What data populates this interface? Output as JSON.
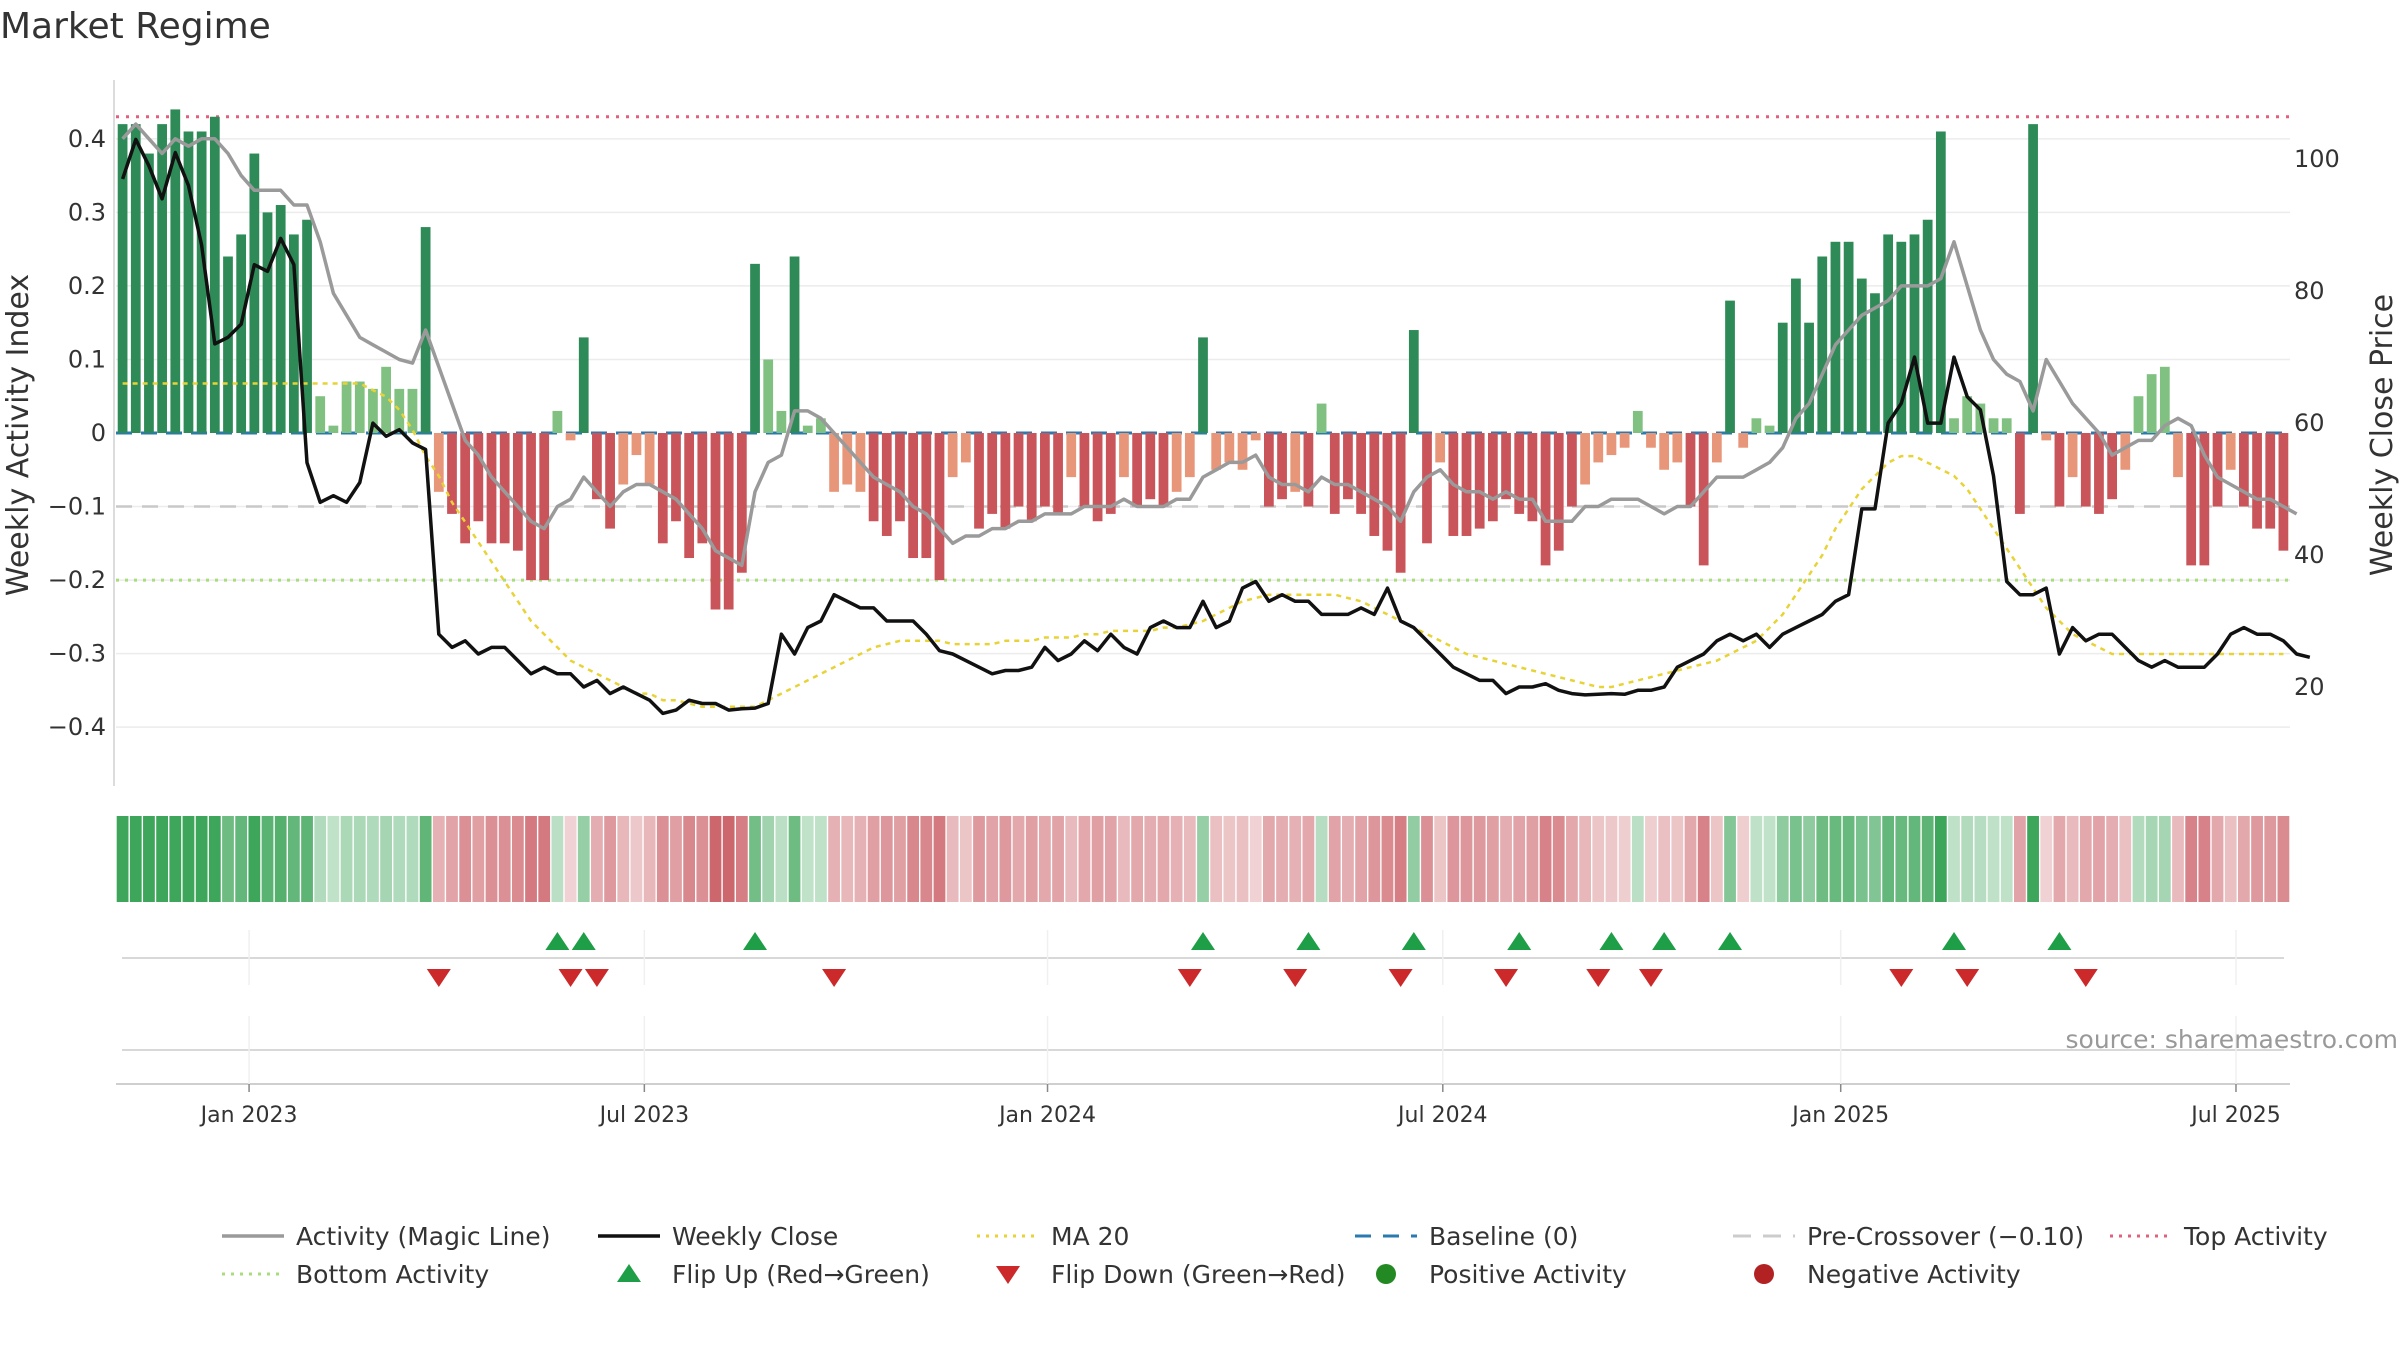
{
  "chart_data": {
    "type": "bar",
    "title": "Market Regime",
    "ylabel": "Weekly Activity Index",
    "y2label": "Weekly Close Price",
    "source": "source: sharemaestro.com",
    "ylim": [
      -0.48,
      0.48
    ],
    "y2lim": [
      5,
      112
    ],
    "yticks": [
      0.4,
      0.3,
      0.2,
      0.1,
      0,
      -0.1,
      -0.2,
      -0.3,
      -0.4
    ],
    "ytick_labels": [
      "0.4",
      "0.3",
      "0.2",
      "0.1",
      "0",
      "−0.1",
      "−0.2",
      "−0.3",
      "−0.4"
    ],
    "y2ticks": [
      100,
      80,
      60,
      40,
      20
    ],
    "y2tick_labels": [
      "100",
      "80",
      "60",
      "40",
      "20"
    ],
    "xticks": [
      9.6,
      39.6,
      70.2,
      100.2,
      130.4,
      160.4
    ],
    "xtick_labels": [
      "Jan 2023",
      "Jul 2023",
      "Jan 2024",
      "Jul 2024",
      "Jan 2025",
      "Jul 2025"
    ],
    "reference_lines": {
      "top": 0.43,
      "pre_crossover": -0.1,
      "bottom": -0.2,
      "baseline": 0
    },
    "activity": [
      0.42,
      0.42,
      0.38,
      0.42,
      0.44,
      0.41,
      0.41,
      0.43,
      0.24,
      0.27,
      0.38,
      0.3,
      0.31,
      0.27,
      0.29,
      0.05,
      0.01,
      0.07,
      0.07,
      0.06,
      0.09,
      0.06,
      0.06,
      0.28,
      -0.08,
      -0.11,
      -0.15,
      -0.12,
      -0.15,
      -0.15,
      -0.16,
      -0.2,
      -0.2,
      0.03,
      -0.01,
      0.13,
      -0.09,
      -0.13,
      -0.07,
      -0.03,
      -0.07,
      -0.15,
      -0.12,
      -0.17,
      -0.15,
      -0.24,
      -0.24,
      -0.19,
      0.23,
      0.1,
      0.03,
      0.24,
      0.01,
      0.02,
      -0.08,
      -0.07,
      -0.08,
      -0.12,
      -0.14,
      -0.12,
      -0.17,
      -0.17,
      -0.2,
      -0.06,
      -0.04,
      -0.13,
      -0.11,
      -0.13,
      -0.1,
      -0.12,
      -0.1,
      -0.11,
      -0.06,
      -0.1,
      -0.12,
      -0.11,
      -0.06,
      -0.1,
      -0.09,
      -0.1,
      -0.08,
      -0.06,
      0.13,
      -0.05,
      -0.04,
      -0.05,
      -0.01,
      -0.1,
      -0.09,
      -0.08,
      -0.1,
      0.04,
      -0.11,
      -0.09,
      -0.11,
      -0.14,
      -0.16,
      -0.19,
      0.14,
      -0.15,
      -0.04,
      -0.14,
      -0.14,
      -0.13,
      -0.12,
      -0.09,
      -0.11,
      -0.12,
      -0.18,
      -0.16,
      -0.1,
      -0.07,
      -0.04,
      -0.03,
      -0.02,
      0.03,
      -0.02,
      -0.05,
      -0.04,
      -0.1,
      -0.18,
      -0.04,
      0.18,
      -0.02,
      0.02,
      0.01,
      0.15,
      0.21,
      0.15,
      0.24,
      0.26,
      0.26,
      0.21,
      0.19,
      0.27,
      0.26,
      0.27,
      0.29,
      0.41,
      0.02,
      0.05,
      0.04,
      0.02,
      0.02,
      -0.11,
      0.42,
      -0.01,
      -0.1,
      -0.06,
      -0.1,
      -0.11,
      -0.09,
      -0.05,
      0.05,
      0.08,
      0.09,
      -0.06,
      -0.18,
      -0.18,
      -0.1,
      -0.05,
      -0.1,
      -0.13,
      -0.13,
      -0.16
    ],
    "magic_line": [
      0.4,
      0.42,
      0.4,
      0.38,
      0.4,
      0.39,
      0.4,
      0.4,
      0.38,
      0.35,
      0.33,
      0.33,
      0.33,
      0.31,
      0.31,
      0.26,
      0.19,
      0.16,
      0.13,
      0.12,
      0.11,
      0.1,
      0.095,
      0.14,
      0.09,
      0.04,
      -0.01,
      -0.03,
      -0.06,
      -0.08,
      -0.1,
      -0.12,
      -0.13,
      -0.1,
      -0.09,
      -0.06,
      -0.08,
      -0.1,
      -0.08,
      -0.07,
      -0.07,
      -0.08,
      -0.09,
      -0.11,
      -0.13,
      -0.16,
      -0.17,
      -0.18,
      -0.08,
      -0.04,
      -0.03,
      0.03,
      0.03,
      0.02,
      0,
      -0.02,
      -0.04,
      -0.06,
      -0.07,
      -0.08,
      -0.1,
      -0.11,
      -0.13,
      -0.15,
      -0.14,
      -0.14,
      -0.13,
      -0.13,
      -0.12,
      -0.12,
      -0.11,
      -0.11,
      -0.11,
      -0.1,
      -0.1,
      -0.1,
      -0.09,
      -0.1,
      -0.1,
      -0.1,
      -0.09,
      -0.09,
      -0.06,
      -0.05,
      -0.04,
      -0.04,
      -0.03,
      -0.06,
      -0.07,
      -0.07,
      -0.08,
      -0.06,
      -0.07,
      -0.07,
      -0.08,
      -0.09,
      -0.1,
      -0.12,
      -0.08,
      -0.06,
      -0.05,
      -0.07,
      -0.08,
      -0.08,
      -0.09,
      -0.08,
      -0.09,
      -0.09,
      -0.12,
      -0.12,
      -0.12,
      -0.1,
      -0.1,
      -0.09,
      -0.09,
      -0.09,
      -0.1,
      -0.11,
      -0.1,
      -0.1,
      -0.08,
      -0.06,
      -0.06,
      -0.06,
      -0.05,
      -0.04,
      -0.02,
      0.02,
      0.04,
      0.08,
      0.12,
      0.14,
      0.16,
      0.17,
      0.18,
      0.2,
      0.2,
      0.2,
      0.21,
      0.26,
      0.2,
      0.14,
      0.1,
      0.08,
      0.07,
      0.03,
      0.1,
      0.07,
      0.04,
      0.02,
      0,
      -0.03,
      -0.02,
      -0.01,
      -0.01,
      0.01,
      0.02,
      0.01,
      -0.03,
      -0.06,
      -0.07,
      -0.08,
      -0.09,
      -0.09,
      -0.1,
      -0.11
    ],
    "weekly_close": [
      97,
      103,
      99,
      94,
      101,
      96,
      87,
      72,
      73,
      75,
      84,
      83,
      88,
      84,
      54,
      48,
      49,
      48,
      51,
      60,
      58,
      59,
      57,
      56,
      28,
      26,
      27,
      25,
      26,
      26,
      24,
      22,
      23,
      22,
      22,
      20,
      21,
      19,
      20,
      19,
      18,
      16,
      16.5,
      18,
      17.5,
      17.5,
      16.5,
      16.7,
      16.8,
      17.5,
      28,
      25,
      29,
      30,
      34,
      33,
      32,
      32,
      30,
      30,
      30,
      28,
      25.5,
      25,
      24,
      23,
      22,
      22.5,
      22.5,
      23,
      26,
      24,
      25,
      27,
      25.5,
      28,
      26,
      25,
      29,
      30,
      29,
      29,
      33,
      29,
      30,
      35,
      36,
      33,
      34,
      33,
      33,
      31,
      31,
      31,
      32,
      31,
      35,
      30,
      29,
      27,
      25,
      23,
      22,
      21,
      21,
      19,
      20,
      20,
      20.5,
      19.5,
      19,
      18.8,
      18.9,
      19,
      18.9,
      19.5,
      19.5,
      20,
      23,
      24,
      25,
      27,
      28,
      27,
      28,
      26,
      28,
      29,
      30,
      31,
      33,
      34,
      47,
      47,
      60,
      63,
      70,
      60,
      60,
      70,
      64,
      62,
      52,
      36,
      34,
      34,
      35,
      25,
      29,
      27,
      28,
      28,
      26,
      24,
      23,
      24,
      23,
      23,
      23,
      25,
      28,
      29,
      28,
      28,
      27,
      25,
      24.5
    ],
    "ma20": [
      66,
      66,
      66,
      66,
      66,
      66,
      66,
      66,
      66,
      66,
      66,
      66,
      66,
      66,
      66,
      66,
      66,
      66,
      66,
      65,
      64,
      62,
      59,
      55,
      52,
      48,
      45,
      42,
      39,
      36,
      33,
      30,
      28,
      26,
      24,
      23,
      22,
      21,
      20,
      19,
      19,
      18,
      18,
      17.5,
      17,
      17,
      17,
      17,
      17,
      18,
      19,
      20,
      21,
      22,
      23,
      24,
      25,
      26,
      26.5,
      27,
      27,
      27,
      27,
      26.5,
      26.5,
      26.5,
      26.5,
      27,
      27,
      27,
      27.5,
      27.5,
      27.5,
      28,
      28,
      28.5,
      28.5,
      28.5,
      28.5,
      29,
      29,
      29.5,
      30,
      31,
      32,
      33,
      33.5,
      34,
      34,
      34,
      34,
      34,
      34,
      33.5,
      33,
      32,
      31,
      30,
      29,
      28,
      27,
      26,
      25,
      24.5,
      24,
      23.5,
      23,
      22.5,
      22,
      21.5,
      21,
      20.5,
      20,
      20,
      20.5,
      21,
      21.5,
      22,
      22.5,
      23,
      23.5,
      24,
      25,
      26,
      27,
      29,
      31,
      34,
      37,
      40,
      44,
      47,
      50,
      52,
      54,
      55,
      55,
      54,
      53,
      52,
      50,
      47,
      44,
      41,
      38,
      35,
      32,
      30,
      28,
      27,
      26,
      25,
      25,
      25,
      25,
      25,
      25,
      25,
      25,
      25,
      25,
      25,
      25,
      25,
      25
    ],
    "flip_up_weeks": [
      33,
      35,
      48,
      82,
      90,
      98,
      106,
      113,
      117,
      122,
      139,
      147
    ],
    "flip_down_weeks": [
      24,
      34,
      36,
      54,
      81,
      89,
      97,
      105,
      112,
      116,
      135,
      140,
      149
    ],
    "legend": [
      {
        "label": "Activity (Magic Line)",
        "style": "line",
        "color": "#9a9a9a"
      },
      {
        "label": "Weekly Close",
        "style": "line",
        "color": "#111111"
      },
      {
        "label": "MA 20",
        "style": "dotted",
        "color": "#e8d336"
      },
      {
        "label": "Baseline (0)",
        "style": "dashed",
        "color": "#2a7ab0"
      },
      {
        "label": "Pre-Crossover (−0.10)",
        "style": "longdash",
        "color": "#cccccc"
      },
      {
        "label": "Top Activity",
        "style": "dotted",
        "color": "#e0607e"
      },
      {
        "label": "Bottom Activity",
        "style": "dotted",
        "color": "#a8dc7c"
      },
      {
        "label": "Flip Up (Red→Green)",
        "style": "tri-up",
        "color": "#1e9e46"
      },
      {
        "label": "Flip Down (Green→Red)",
        "style": "tri-down",
        "color": "#cc2a2a"
      },
      {
        "label": "Positive Activity",
        "style": "dot",
        "color": "#238a23"
      },
      {
        "label": "Negative Activity",
        "style": "dot",
        "color": "#b22222"
      }
    ],
    "colors": {
      "pos_strong": "#2e8b57",
      "pos_light": "#80c080",
      "neg_strong": "#c9545a",
      "neg_light": "#e8967a",
      "magic_line": "#9a9a9a",
      "close": "#111111",
      "ma20": "#e8d336",
      "top": "#e0607e",
      "bottom": "#a8dc7c",
      "pre": "#c8c8c8",
      "baseline": "#2a7ab0",
      "flip_up": "#1e9e46",
      "flip_down": "#cc2a2a"
    }
  }
}
